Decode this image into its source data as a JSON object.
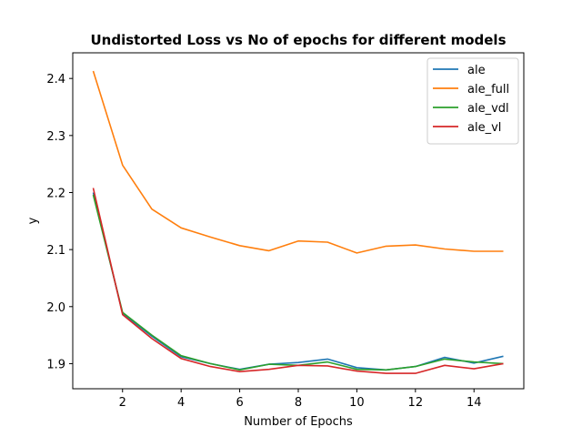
{
  "chart_data": {
    "type": "line",
    "title": "Undistorted Loss vs No of epochs for different models",
    "xlabel": "Number of Epochs",
    "ylabel": "y",
    "xlim": [
      0.3,
      15.7
    ],
    "ylim": [
      1.856,
      2.445
    ],
    "xticks": [
      2,
      4,
      6,
      8,
      10,
      12,
      14
    ],
    "yticks": [
      1.9,
      2.0,
      2.1,
      2.2,
      2.3,
      2.4
    ],
    "grid": false,
    "legend_position": "top-right",
    "x": [
      1,
      2,
      3,
      4,
      5,
      6,
      7,
      8,
      9,
      10,
      11,
      12,
      13,
      14,
      15
    ],
    "series": [
      {
        "name": "ale",
        "color": "#1f77b4",
        "values": [
          2.2,
          1.988,
          1.948,
          1.912,
          1.9,
          1.89,
          1.899,
          1.902,
          1.908,
          1.893,
          1.889,
          1.895,
          1.911,
          1.901,
          1.913
        ]
      },
      {
        "name": "ale_full",
        "color": "#ff7f0e",
        "values": [
          2.413,
          2.248,
          2.171,
          2.138,
          2.122,
          2.107,
          2.098,
          2.115,
          2.113,
          2.094,
          2.106,
          2.108,
          2.101,
          2.097,
          2.097
        ]
      },
      {
        "name": "ale_vdl",
        "color": "#2ca02c",
        "values": [
          2.196,
          1.99,
          1.95,
          1.914,
          1.9,
          1.889,
          1.899,
          1.897,
          1.903,
          1.89,
          1.889,
          1.895,
          1.908,
          1.903,
          1.9
        ]
      },
      {
        "name": "ale_vl",
        "color": "#d62728",
        "values": [
          2.208,
          1.986,
          1.944,
          1.909,
          1.895,
          1.886,
          1.89,
          1.897,
          1.896,
          1.887,
          1.883,
          1.883,
          1.897,
          1.891,
          1.9
        ]
      }
    ]
  }
}
